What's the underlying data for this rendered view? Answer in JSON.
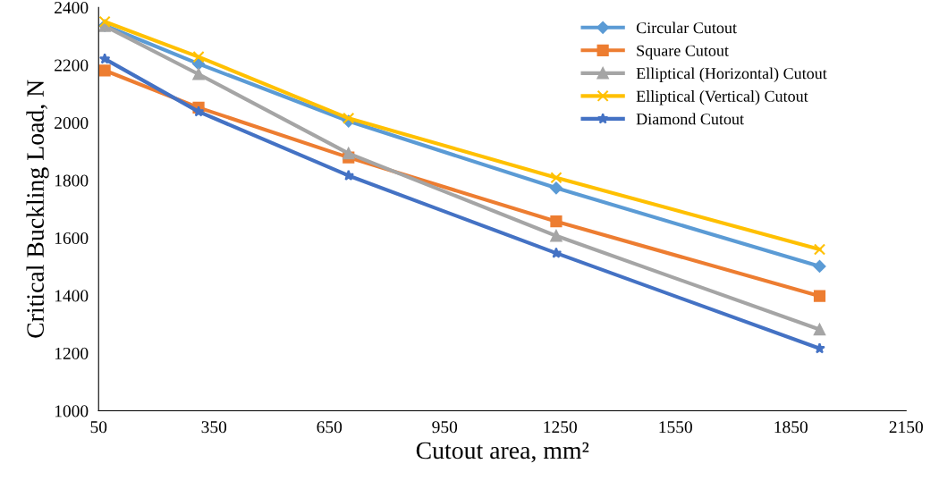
{
  "chart_data": {
    "type": "line",
    "xlabel": "Cutout area, mm²",
    "ylabel": "Critical Buckling Load, N",
    "x": [
      66,
      310,
      700,
      1240,
      1925
    ],
    "series": [
      {
        "name": "Circular Cutout",
        "color": "#5b9bd5",
        "marker": "diamond",
        "values": [
          2337,
          2204,
          2005,
          1773,
          1501
        ]
      },
      {
        "name": "Square Cutout",
        "color": "#ed7d31",
        "marker": "square",
        "values": [
          2181,
          2052,
          1879,
          1657,
          1398
        ]
      },
      {
        "name": "Elliptical (Horizontal) Cutout",
        "color": "#a5a5a5",
        "marker": "triangle",
        "values": [
          2335,
          2168,
          1893,
          1607,
          1282
        ]
      },
      {
        "name": "Elliptical (Vertical) Cutout",
        "color": "#ffc000",
        "marker": "cross",
        "values": [
          2350,
          2228,
          2015,
          1809,
          1560
        ]
      },
      {
        "name": "Diamond Cutout",
        "color": "#4472c4",
        "marker": "star",
        "values": [
          2221,
          2038,
          1816,
          1547,
          1216
        ]
      }
    ],
    "xlim": [
      50,
      2150
    ],
    "xticks": [
      50,
      350,
      650,
      950,
      1250,
      1550,
      1850,
      2150
    ],
    "ylim": [
      1000,
      2400
    ],
    "yticks": [
      1000,
      1200,
      1400,
      1600,
      1800,
      2000,
      2200,
      2400
    ],
    "grid": false,
    "legend": "top right",
    "line_style": "solid"
  }
}
